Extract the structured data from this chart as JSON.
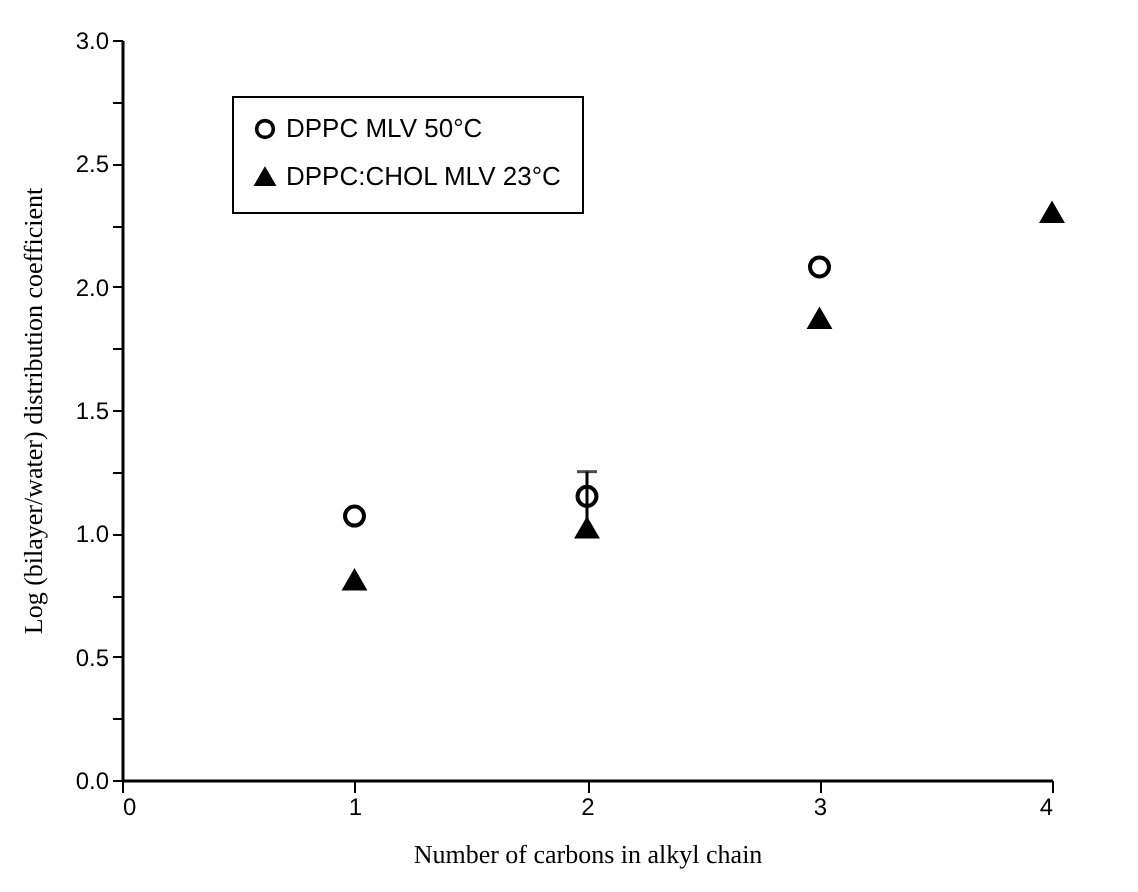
{
  "chart_data": {
    "type": "scatter",
    "xlabel": "Number of carbons in alkyl chain",
    "ylabel": "Log (bilayer/water) distribution coefficient",
    "x": [
      1,
      2,
      3,
      4
    ],
    "series": [
      {
        "name": "DPPC MLV 50°C",
        "color": "#000000",
        "marker": "circle",
        "values": [
          1.07,
          1.15,
          2.08,
          null
        ],
        "errors": [
          null,
          0.1,
          null,
          null
        ]
      },
      {
        "name": "DPPC:CHOL MLV 23°C",
        "color": "#000000",
        "marker": "triangle",
        "values": [
          0.81,
          1.02,
          1.87,
          2.3
        ]
      }
    ],
    "xlim": [
      0,
      4
    ],
    "xticks": [
      0,
      1,
      2,
      3,
      4
    ],
    "ylim": [
      0,
      3
    ],
    "yticks": [
      {
        "value": 0,
        "label": "0.0"
      },
      {
        "value": 0.25,
        "label": null
      },
      {
        "value": 0.5,
        "label": "0.5"
      },
      {
        "value": 0.75,
        "label": null
      },
      {
        "value": 1,
        "label": "1.0"
      },
      {
        "value": 1.25,
        "label": null
      },
      {
        "value": 1.5,
        "label": "1.5"
      },
      {
        "value": 1.75,
        "label": null
      },
      {
        "value": 2,
        "label": "2.0"
      },
      {
        "value": 2.25,
        "label": null
      },
      {
        "value": 2.5,
        "label": "2.5"
      },
      {
        "value": 2.75,
        "label": null
      },
      {
        "value": 3,
        "label": "3.0"
      }
    ],
    "grid": false,
    "legend": "top left"
  }
}
